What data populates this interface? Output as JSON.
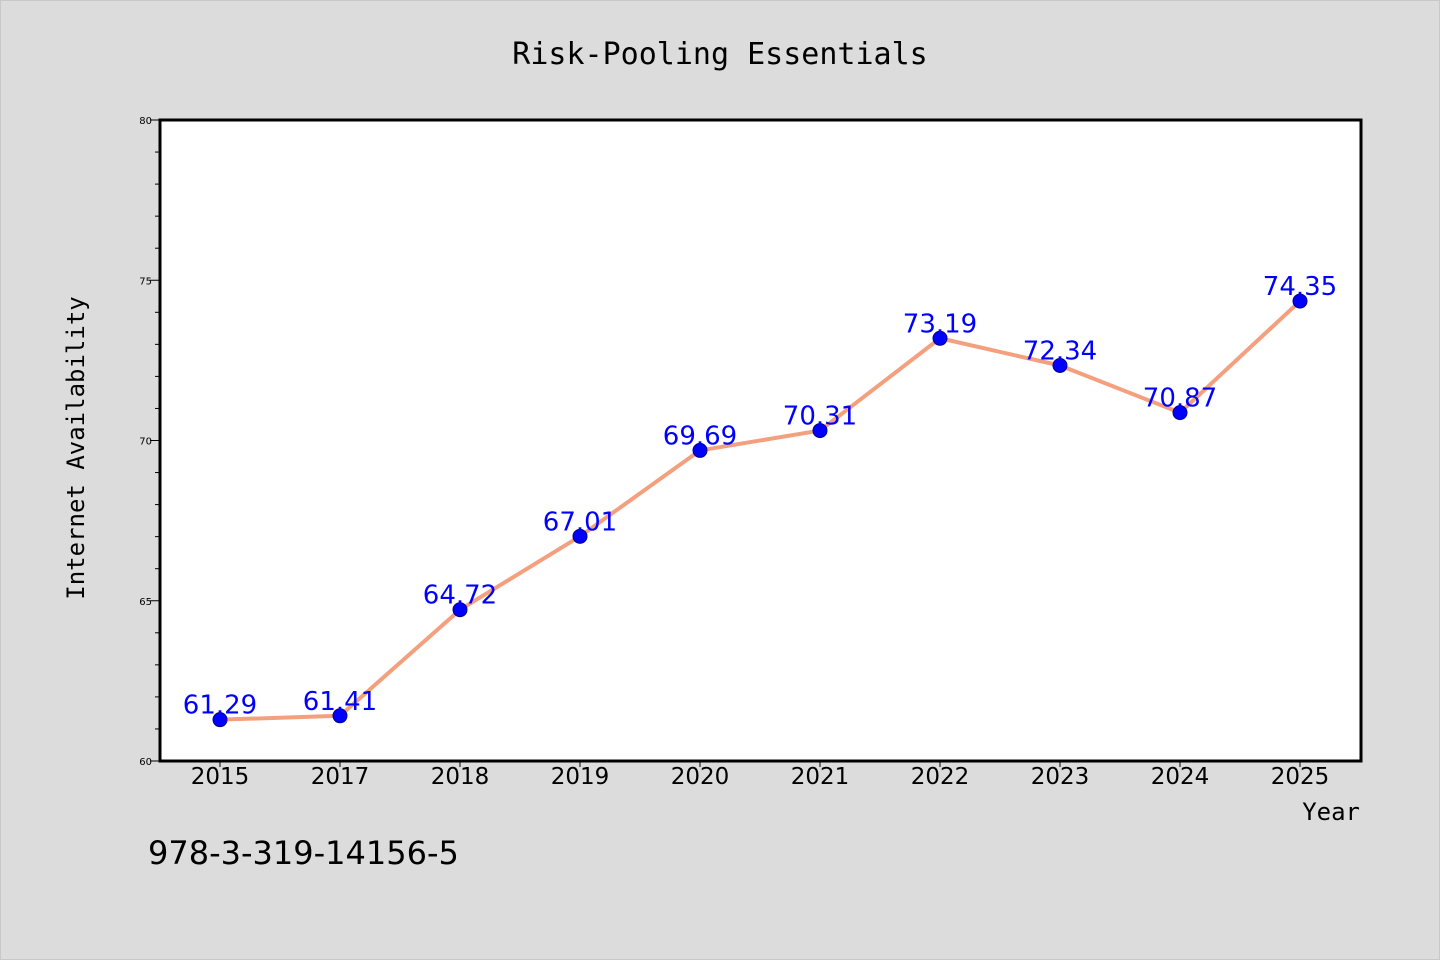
{
  "footer": {
    "isbn": "978-3-319-14156-5"
  },
  "colors": {
    "line": "#f4a07e",
    "marker": "#0000ff",
    "label": "#0000ff",
    "background": "#dcdcdc",
    "plot": "#ffffff"
  },
  "chart_data": {
    "type": "line",
    "title": "Risk-Pooling Essentials",
    "xlabel": "Year",
    "ylabel": "Internet Availability",
    "categories": [
      "2015",
      "2017",
      "2018",
      "2019",
      "2020",
      "2021",
      "2022",
      "2023",
      "2024",
      "2025"
    ],
    "series": [
      {
        "values": [
          61.29,
          61.41,
          64.72,
          67.01,
          69.69,
          70.31,
          73.19,
          72.34,
          70.87,
          74.35
        ],
        "labels": [
          "61.29",
          "61.41",
          "64.72",
          "67.01",
          "69.69",
          "70.31",
          "73.19",
          "72.34",
          "70.87",
          "74.35"
        ]
      }
    ],
    "ylim": [
      60,
      80
    ],
    "yticks": [
      60,
      65,
      70,
      75,
      80
    ],
    "grid": false,
    "legend": "none"
  }
}
